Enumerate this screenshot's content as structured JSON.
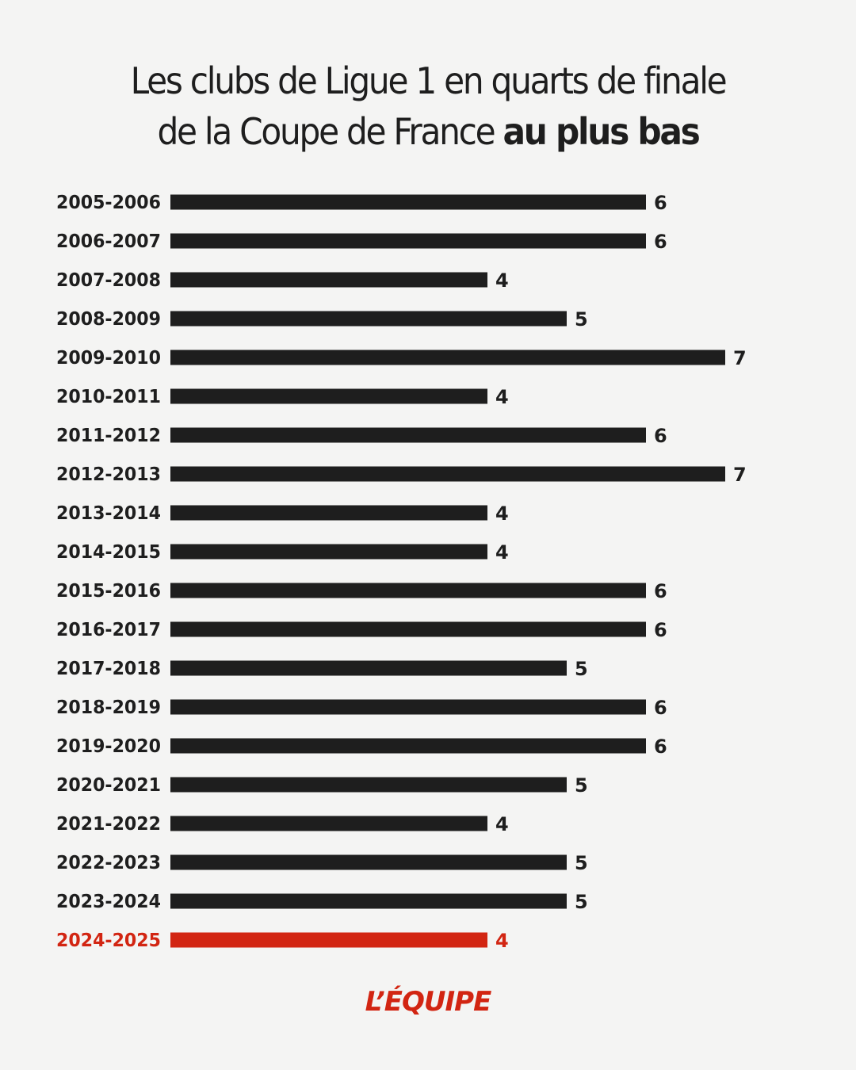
{
  "title": {
    "line1": "Les clubs de Ligue 1 en quarts de finale",
    "line2_normal": "de la Coupe de France ",
    "line2_bold": "au plus bas"
  },
  "brand": {
    "logo_text": "L’ÉQUIPE"
  },
  "colors": {
    "background": "#f4f4f3",
    "bar": "#1e1e1e",
    "highlight": "#d22512",
    "text": "#1e1e1e"
  },
  "chart_data": {
    "type": "bar",
    "orientation": "horizontal",
    "categories": [
      "2005-2006",
      "2006-2007",
      "2007-2008",
      "2008-2009",
      "2009-2010",
      "2010-2011",
      "2011-2012",
      "2012-2013",
      "2013-2014",
      "2014-2015",
      "2015-2016",
      "2016-2017",
      "2017-2018",
      "2018-2019",
      "2019-2020",
      "2020-2021",
      "2021-2022",
      "2022-2023",
      "2023-2024",
      "2024-2025"
    ],
    "values": [
      6,
      6,
      4,
      5,
      7,
      4,
      6,
      7,
      4,
      4,
      6,
      6,
      5,
      6,
      6,
      5,
      4,
      5,
      5,
      4
    ],
    "highlight_category": "2024-2025",
    "data_labels": true,
    "grid": false,
    "legend": "none",
    "xlim": [
      0,
      7
    ]
  }
}
